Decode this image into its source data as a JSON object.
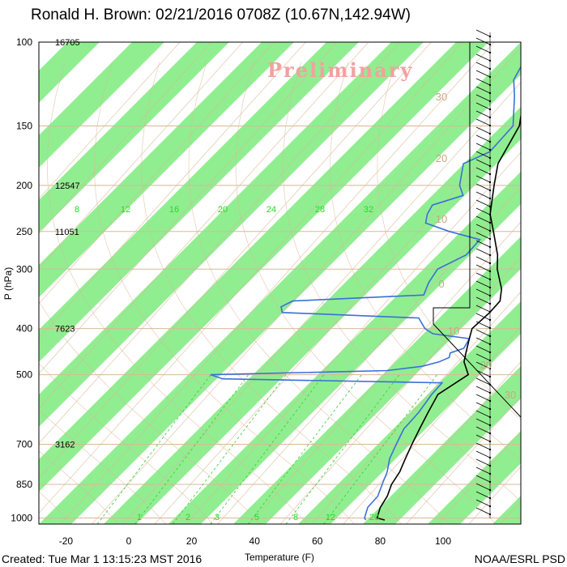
{
  "title": "Ronald H. Brown: 02/21/2016 0708Z (10.67N,142.94W)",
  "footer_left": "Created: Tue Mar  1 13:15:23 MST 2016",
  "footer_right": "NOAA/ESRL PSD",
  "watermark": "Preliminary",
  "colors": {
    "band": "#90ee90",
    "temperature": "#000000",
    "dewpoint": "#3b6fd8",
    "background_lines": "#d8b898"
  },
  "chart_data": {
    "type": "skew-t",
    "xlabel": "Temperature (F)",
    "ylabel": "P (hPa)",
    "x_ticks": [
      -20,
      0,
      20,
      40,
      60,
      80,
      100
    ],
    "x_tick_labels": [
      "-20",
      "0",
      "20",
      "40",
      "60",
      "80",
      "100"
    ],
    "y_ticks": [
      100,
      150,
      200,
      250,
      300,
      400,
      500,
      700,
      850,
      1000
    ],
    "y_tick_labels": [
      "100",
      "150",
      "200",
      "250",
      "300",
      "400",
      "500",
      "700",
      "850",
      "1000"
    ],
    "height_labels": [
      {
        "p": 100,
        "text": "16705"
      },
      {
        "p": 200,
        "text": "12547"
      },
      {
        "p": 250,
        "text": "11051"
      },
      {
        "p": 400,
        "text": "7623"
      },
      {
        "p": 700,
        "text": "3162"
      }
    ],
    "mixing_ratio_labels": [
      "8",
      "12",
      "16",
      "20",
      "24",
      "28",
      "32"
    ],
    "bottom_mixing_labels": [
      "1",
      "2",
      "3",
      "5",
      "8",
      "12",
      "20"
    ],
    "isotherm_labels": [
      "30",
      "20",
      "10",
      "0",
      "10",
      "20",
      "30"
    ],
    "temperature_profile": [
      [
        1010,
        82
      ],
      [
        1000,
        79
      ],
      [
        950,
        77
      ],
      [
        900,
        76
      ],
      [
        850,
        74
      ],
      [
        800,
        73
      ],
      [
        750,
        71
      ],
      [
        700,
        69
      ],
      [
        650,
        67
      ],
      [
        600,
        65
      ],
      [
        550,
        63
      ],
      [
        500,
        67
      ],
      [
        470,
        62
      ],
      [
        450,
        60
      ],
      [
        420,
        57
      ],
      [
        400,
        55
      ],
      [
        370,
        56
      ],
      [
        350,
        56
      ],
      [
        330,
        53
      ],
      [
        300,
        46
      ],
      [
        280,
        42
      ],
      [
        250,
        34
      ],
      [
        230,
        28
      ],
      [
        200,
        21
      ],
      [
        180,
        16
      ],
      [
        150,
        12
      ],
      [
        130,
        5
      ],
      [
        110,
        0
      ],
      [
        100,
        -3
      ]
    ],
    "dewpoint_profile": [
      [
        1010,
        76
      ],
      [
        1000,
        75
      ],
      [
        950,
        73
      ],
      [
        900,
        73
      ],
      [
        850,
        71
      ],
      [
        800,
        69
      ],
      [
        750,
        66
      ],
      [
        700,
        64
      ],
      [
        650,
        62
      ],
      [
        600,
        62
      ],
      [
        550,
        61
      ],
      [
        520,
        61
      ],
      [
        510,
        -10
      ],
      [
        500,
        -15
      ],
      [
        490,
        40
      ],
      [
        480,
        50
      ],
      [
        470,
        54
      ],
      [
        460,
        56
      ],
      [
        450,
        55
      ],
      [
        440,
        58
      ],
      [
        420,
        57
      ],
      [
        410,
        44
      ],
      [
        400,
        40
      ],
      [
        380,
        35
      ],
      [
        370,
        -10
      ],
      [
        360,
        -12
      ],
      [
        350,
        -10
      ],
      [
        340,
        30
      ],
      [
        320,
        28
      ],
      [
        300,
        27
      ],
      [
        280,
        32
      ],
      [
        260,
        32
      ],
      [
        250,
        20
      ],
      [
        240,
        10
      ],
      [
        230,
        8
      ],
      [
        220,
        7
      ],
      [
        210,
        14
      ],
      [
        200,
        10
      ],
      [
        180,
        5
      ],
      [
        170,
        10
      ],
      [
        150,
        10
      ],
      [
        130,
        2
      ],
      [
        120,
        -3
      ],
      [
        110,
        -5
      ],
      [
        100,
        -8
      ]
    ],
    "xlim": [
      -28,
      125
    ],
    "ylim": [
      1030,
      100
    ],
    "grid": true
  }
}
